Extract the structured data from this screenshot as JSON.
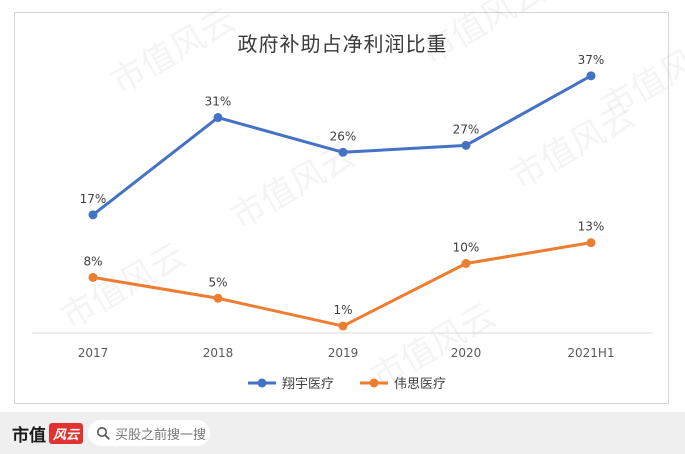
{
  "chart_data": {
    "type": "line",
    "title": "政府补助占净利润比重",
    "categories": [
      "2017",
      "2018",
      "2019",
      "2020",
      "2021H1"
    ],
    "ylim": [
      0,
      40
    ],
    "grid": false,
    "legend_position": "bottom",
    "series": [
      {
        "name": "翔宇医疗",
        "color": "#4472c4",
        "values": [
          17,
          31,
          26,
          27,
          37
        ],
        "labels": [
          "17%",
          "31%",
          "26%",
          "27%",
          "37%"
        ]
      },
      {
        "name": "伟思医疗",
        "color": "#ed7d31",
        "values": [
          8,
          5,
          1,
          10,
          13
        ],
        "labels": [
          "8%",
          "5%",
          "1%",
          "10%",
          "13%"
        ]
      }
    ]
  },
  "watermark": "市值风云",
  "footer": {
    "brand": "市值",
    "brand_badge": "风云",
    "search_placeholder": "买股之前搜一搜",
    "search_icon": "search-icon"
  }
}
